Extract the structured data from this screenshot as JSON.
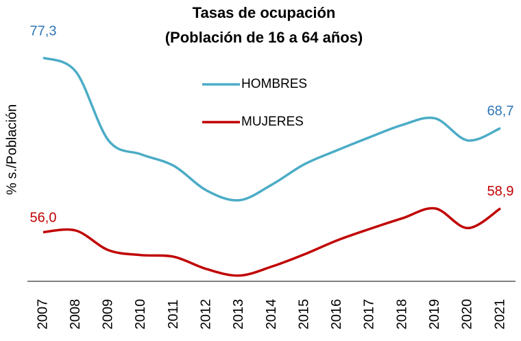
{
  "chart_data": {
    "type": "line",
    "title": "Tasas de ocupación",
    "subtitle": "(Población de 16 a 64 años)",
    "y_axis_label": "% s./Población",
    "categories": [
      "2007",
      "2008",
      "2009",
      "2010",
      "2011",
      "2012",
      "2013",
      "2014",
      "2015",
      "2016",
      "2017",
      "2018",
      "2019",
      "2020",
      "2021"
    ],
    "series": [
      {
        "name": "HOMBRES",
        "color": "#4bacc6",
        "label_color": "#2e75b6",
        "values": [
          77.3,
          75.6,
          67.2,
          65.5,
          64.1,
          61.1,
          59.9,
          61.8,
          64.3,
          66.0,
          67.6,
          69.1,
          69.9,
          67.2,
          68.7
        ],
        "value_labels": [
          "77,3",
          null,
          null,
          null,
          null,
          null,
          null,
          null,
          null,
          null,
          null,
          null,
          null,
          null,
          "68,7"
        ]
      },
      {
        "name": "MUJERES",
        "color": "#c00000",
        "label_color": "#c00000",
        "values": [
          56.0,
          56.2,
          53.8,
          53.2,
          53.0,
          51.5,
          50.7,
          51.8,
          53.3,
          55.0,
          56.4,
          57.7,
          58.9,
          56.5,
          58.9
        ],
        "value_labels": [
          "56,0",
          null,
          null,
          null,
          null,
          null,
          null,
          null,
          null,
          null,
          null,
          null,
          null,
          null,
          "58,9"
        ]
      }
    ],
    "ylim": [
      50,
      81
    ]
  }
}
